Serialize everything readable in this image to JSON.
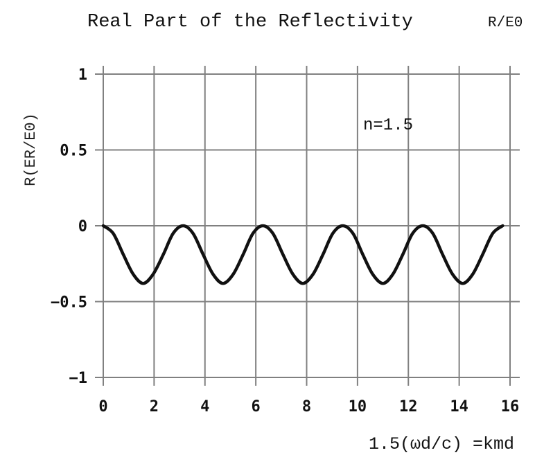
{
  "chart_data": {
    "type": "line",
    "title": "Real Part of the Reflectivity",
    "title_suffix": "R/E0",
    "ylabel": "R(ER/E0)",
    "xlabel": "1.5(ωd/c) =kmd",
    "annotation": "n=1.5",
    "xlim": [
      0,
      16
    ],
    "ylim": [
      -1,
      1
    ],
    "x_ticks": [
      "0",
      "2",
      "4",
      "6",
      "8",
      "10",
      "12",
      "14",
      "16"
    ],
    "y_ticks": [
      "1",
      "0.5",
      "0",
      "−0.5",
      "−1"
    ],
    "grid": true,
    "line_color": "#111111",
    "grid_color": "#808080",
    "series": [
      {
        "x": [
          0,
          0.39,
          0.79,
          1.18,
          1.57,
          1.96,
          2.36,
          2.75,
          3.14,
          3.53,
          3.93,
          4.32,
          4.71,
          5.11,
          5.5,
          5.89,
          6.28,
          6.67,
          7.07,
          7.46,
          7.85,
          8.25,
          8.64,
          9.03,
          9.42,
          9.82,
          10.21,
          10.6,
          11.0,
          11.39,
          11.78,
          12.17,
          12.57,
          12.96,
          13.35,
          13.74,
          14.14,
          14.53,
          14.92,
          15.32,
          15.71
        ],
        "y": [
          0,
          -0.05,
          -0.19,
          -0.32,
          -0.38,
          -0.32,
          -0.19,
          -0.05,
          0,
          -0.05,
          -0.19,
          -0.32,
          -0.38,
          -0.32,
          -0.19,
          -0.05,
          0,
          -0.05,
          -0.19,
          -0.32,
          -0.38,
          -0.32,
          -0.19,
          -0.05,
          0,
          -0.05,
          -0.19,
          -0.32,
          -0.38,
          -0.32,
          -0.19,
          -0.05,
          0,
          -0.05,
          -0.19,
          -0.32,
          -0.38,
          -0.32,
          -0.19,
          -0.05,
          0
        ]
      }
    ]
  }
}
